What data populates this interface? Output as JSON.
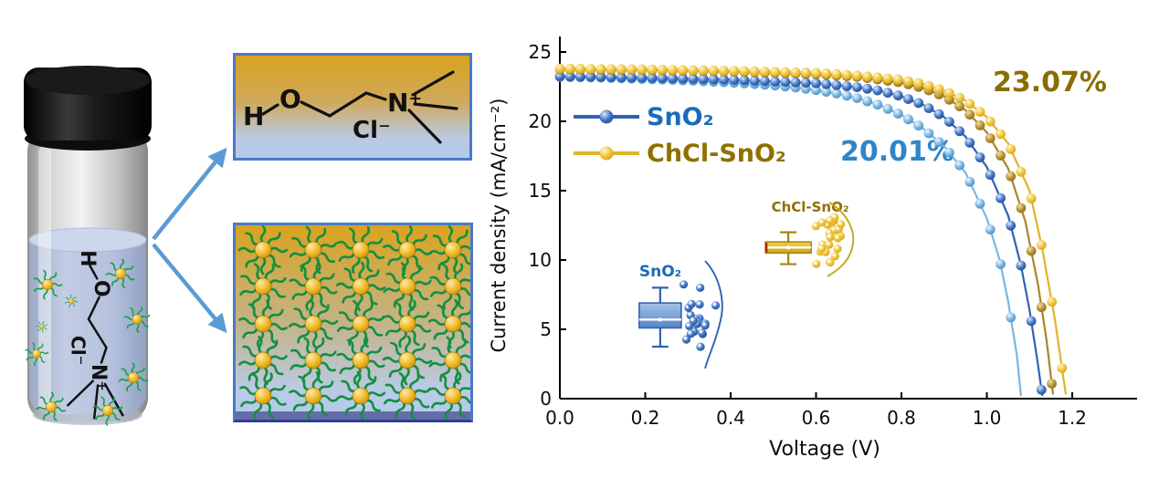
{
  "figure": {
    "vial": {
      "description": "glass vial with black cap containing choline chloride solution and ligand-capped SnO2 nanoparticles"
    },
    "molecule_panel": {
      "atoms": {
        "h": "H",
        "o": "O",
        "n": "N⁺",
        "cl": "Cl⁻"
      }
    },
    "nanoparticle_panel": {
      "rows": 5,
      "cols": 5
    }
  },
  "chart_data": {
    "type": "line",
    "title": "",
    "xlabel": "Voltage (V)",
    "ylabel": "Current density (mA/cm⁻²)",
    "xlim": [
      0.0,
      1.3
    ],
    "ylim": [
      0,
      25
    ],
    "grid": false,
    "legend_position": "upper-left",
    "x_ticks": [
      "0.0",
      "0.2",
      "0.4",
      "0.6",
      "0.8",
      "1.0",
      "1.2"
    ],
    "y_ticks": [
      "0",
      "5",
      "10",
      "15",
      "20",
      "25"
    ],
    "legend": [
      {
        "label": "SnO₂",
        "color": "#1b6cb8",
        "marker_color": "#2f62b5"
      },
      {
        "label": "ChCl-SnO₂",
        "color": "#8f7000",
        "marker_color": "#e7ba2b"
      }
    ],
    "annotations": [
      {
        "text": "20.01%",
        "color": "#2e86c8",
        "series": "SnO₂"
      },
      {
        "text": "23.07%",
        "color": "#8a6d00",
        "series": "ChCl-SnO₂"
      }
    ],
    "series": [
      {
        "name": "SnO₂ forward",
        "color": "#5fa8dc",
        "line_color": "#7ab6e3",
        "points": [
          [
            0,
            23.2
          ],
          [
            0.1,
            23.15
          ],
          [
            0.2,
            23.05
          ],
          [
            0.3,
            22.95
          ],
          [
            0.4,
            22.8
          ],
          [
            0.5,
            22.6
          ],
          [
            0.55,
            22.45
          ],
          [
            0.6,
            22.25
          ],
          [
            0.65,
            22.0
          ],
          [
            0.7,
            21.65
          ],
          [
            0.75,
            21.15
          ],
          [
            0.8,
            20.45
          ],
          [
            0.85,
            19.5
          ],
          [
            0.9,
            18.2
          ],
          [
            0.95,
            16.3
          ],
          [
            1.0,
            13.0
          ],
          [
            1.03,
            10.0
          ],
          [
            1.05,
            7.0
          ],
          [
            1.07,
            3.2
          ],
          [
            1.08,
            0.2
          ]
        ]
      },
      {
        "name": "SnO₂ reverse",
        "color": "#2f62b5",
        "line_color": "#2f62b5",
        "points": [
          [
            0,
            23.25
          ],
          [
            0.2,
            23.15
          ],
          [
            0.4,
            23.0
          ],
          [
            0.6,
            22.75
          ],
          [
            0.7,
            22.45
          ],
          [
            0.75,
            22.2
          ],
          [
            0.8,
            21.8
          ],
          [
            0.85,
            21.2
          ],
          [
            0.9,
            20.3
          ],
          [
            0.95,
            18.9
          ],
          [
            1.0,
            16.7
          ],
          [
            1.05,
            13.2
          ],
          [
            1.08,
            9.6
          ],
          [
            1.1,
            6.4
          ],
          [
            1.12,
            2.4
          ],
          [
            1.13,
            0.2
          ]
        ]
      },
      {
        "name": "ChCl-SnO₂ forward",
        "color": "#a8852e",
        "line_color": "#a8852e",
        "points": [
          [
            0,
            23.75
          ],
          [
            0.2,
            23.7
          ],
          [
            0.4,
            23.6
          ],
          [
            0.6,
            23.4
          ],
          [
            0.7,
            23.2
          ],
          [
            0.8,
            22.8
          ],
          [
            0.85,
            22.4
          ],
          [
            0.9,
            21.8
          ],
          [
            0.95,
            20.8
          ],
          [
            1.0,
            19.2
          ],
          [
            1.05,
            16.6
          ],
          [
            1.09,
            12.8
          ],
          [
            1.12,
            8.2
          ],
          [
            1.14,
            4.2
          ],
          [
            1.155,
            0.3
          ]
        ]
      },
      {
        "name": "ChCl-SnO₂ reverse",
        "color": "#e7ba2b",
        "line_color": "#e0b428",
        "points": [
          [
            0,
            23.8
          ],
          [
            0.2,
            23.75
          ],
          [
            0.4,
            23.65
          ],
          [
            0.6,
            23.5
          ],
          [
            0.7,
            23.3
          ],
          [
            0.8,
            23.0
          ],
          [
            0.85,
            22.7
          ],
          [
            0.9,
            22.2
          ],
          [
            0.95,
            21.5
          ],
          [
            1.0,
            20.3
          ],
          [
            1.05,
            18.4
          ],
          [
            1.1,
            15.0
          ],
          [
            1.13,
            10.8
          ],
          [
            1.16,
            5.6
          ],
          [
            1.185,
            0.3
          ]
        ]
      }
    ],
    "insets": [
      {
        "name": "SnO₂",
        "label_color": "#1b6cb8",
        "type": "boxplot+scatter",
        "center_v": 0.235,
        "box": {
          "whisker_low": 3.75,
          "q1": 5.1,
          "median": 5.7,
          "q3": 6.9,
          "whisker_high": 8.0
        },
        "scatter": {
          "center_v": 0.327,
          "center_j": 5.6,
          "spread_v": 0.048,
          "spread_j": 2.9,
          "count": 22
        }
      },
      {
        "name": "ChCl-SnO₂",
        "label_color": "#8f7000",
        "type": "boxplot+scatter",
        "center_v": 0.535,
        "box": {
          "whisker_low": 9.7,
          "q1": 10.5,
          "median": 10.9,
          "q3": 11.3,
          "whisker_high": 12.0
        },
        "scatter": {
          "center_v": 0.635,
          "center_j": 11.6,
          "spread_v": 0.043,
          "spread_j": 2.1,
          "count": 26
        }
      }
    ]
  }
}
